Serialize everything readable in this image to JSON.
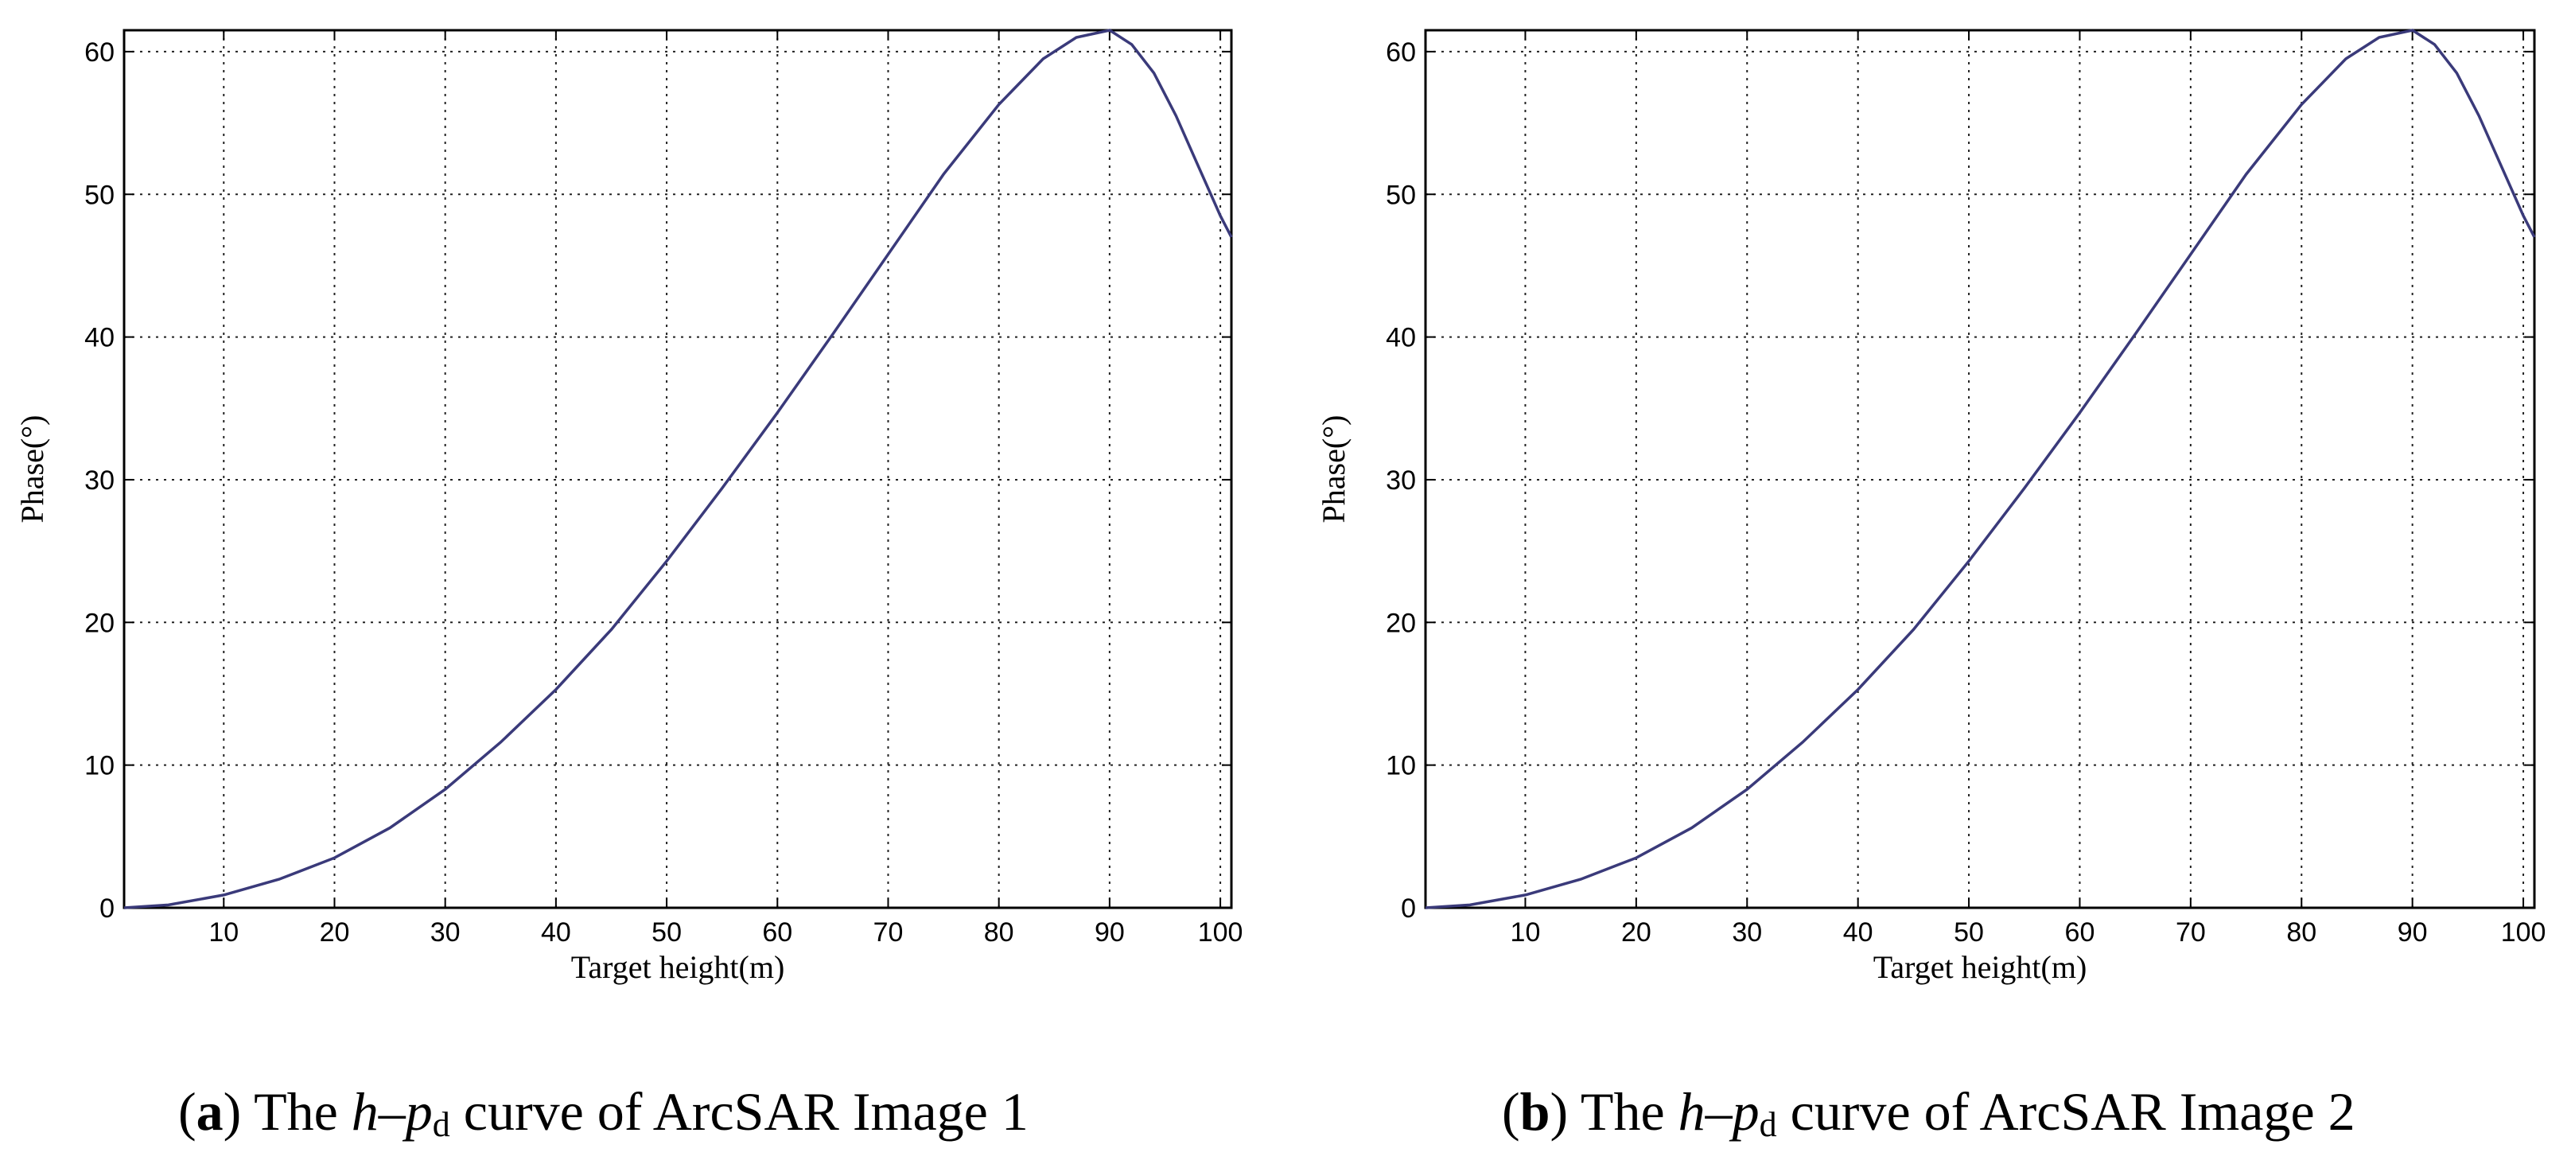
{
  "colors": {
    "curve": "#3a3a7a",
    "grid": "#222222",
    "axis": "#000000"
  },
  "chart_data": [
    {
      "type": "line",
      "caption": {
        "letter": "a",
        "pre": "The ",
        "h": "h",
        "dash": "–",
        "p": "p",
        "sub": "d",
        "post": " curve of ArcSAR Image 1"
      },
      "xlabel": "Target height(m)",
      "ylabel": "Phase(°)",
      "xlim": [
        1,
        101
      ],
      "ylim": [
        0,
        61.5
      ],
      "xticks": [
        10,
        20,
        30,
        40,
        50,
        60,
        70,
        80,
        90,
        100
      ],
      "yticks": [
        0,
        10,
        20,
        30,
        40,
        50,
        60
      ],
      "grid": true,
      "series": [
        {
          "x": [
            1,
            5,
            10,
            15,
            20,
            25,
            30,
            35,
            40,
            45,
            50,
            55,
            60,
            65,
            70,
            75,
            80,
            84,
            87,
            90,
            92,
            94,
            96,
            98,
            100,
            101
          ],
          "y": [
            0,
            0.2,
            0.9,
            2.0,
            3.5,
            5.6,
            8.3,
            11.6,
            15.3,
            19.5,
            24.3,
            29.4,
            34.7,
            40.2,
            45.8,
            51.4,
            56.3,
            59.5,
            61.0,
            61.5,
            60.5,
            58.5,
            55.5,
            52.0,
            48.5,
            47.0
          ]
        }
      ]
    },
    {
      "type": "line",
      "caption": {
        "letter": "b",
        "pre": "The ",
        "h": "h",
        "dash": "–",
        "p": "p",
        "sub": "d",
        "post": " curve of ArcSAR Image 2"
      },
      "xlabel": "Target height(m)",
      "ylabel": "Phase(°)",
      "xlim": [
        1,
        101
      ],
      "ylim": [
        0,
        61.5
      ],
      "xticks": [
        10,
        20,
        30,
        40,
        50,
        60,
        70,
        80,
        90,
        100
      ],
      "yticks": [
        0,
        10,
        20,
        30,
        40,
        50,
        60
      ],
      "grid": true,
      "series": [
        {
          "x": [
            1,
            5,
            10,
            15,
            20,
            25,
            30,
            35,
            40,
            45,
            50,
            55,
            60,
            65,
            70,
            75,
            80,
            84,
            87,
            90,
            92,
            94,
            96,
            98,
            100,
            101
          ],
          "y": [
            0,
            0.2,
            0.9,
            2.0,
            3.5,
            5.6,
            8.3,
            11.6,
            15.3,
            19.5,
            24.3,
            29.4,
            34.7,
            40.2,
            45.8,
            51.4,
            56.3,
            59.5,
            61.0,
            61.5,
            60.5,
            58.5,
            55.5,
            52.0,
            48.5,
            47.0
          ]
        }
      ]
    }
  ]
}
